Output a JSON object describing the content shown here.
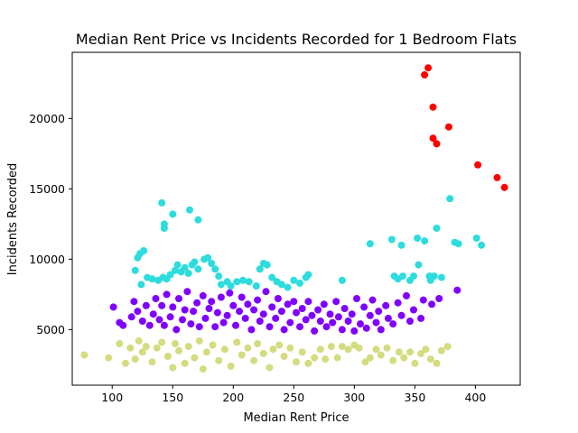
{
  "chart_data": {
    "type": "scatter",
    "title": "Median Rent Price vs Incidents Recorded for 1 Bedroom Flats",
    "xlabel": "Median Rent Price",
    "ylabel": "Incidents Recorded",
    "xlim": [
      67,
      437
    ],
    "ylim": [
      1050,
      24700
    ],
    "xticks": [
      100,
      150,
      200,
      250,
      300,
      350,
      400
    ],
    "yticks": [
      5000,
      10000,
      15000,
      20000
    ],
    "grid": false,
    "legend": "none",
    "series": [
      {
        "color": "#ff0000",
        "points": [
          [
            358,
            23100
          ],
          [
            361,
            23600
          ],
          [
            365,
            20800
          ],
          [
            365,
            18600
          ],
          [
            368,
            18200
          ],
          [
            378,
            19400
          ],
          [
            402,
            16700
          ],
          [
            418,
            15800
          ],
          [
            424,
            15100
          ]
        ]
      },
      {
        "color": "#2ddcdc",
        "points": [
          [
            141,
            14000
          ],
          [
            143,
            12200
          ],
          [
            143,
            12500
          ],
          [
            150,
            13200
          ],
          [
            164,
            13500
          ],
          [
            171,
            12800
          ],
          [
            119,
            9200
          ],
          [
            121,
            10100
          ],
          [
            123,
            10400
          ],
          [
            126,
            10600
          ],
          [
            124,
            8200
          ],
          [
            129,
            8700
          ],
          [
            133,
            8600
          ],
          [
            138,
            8500
          ],
          [
            142,
            8700
          ],
          [
            145,
            8600
          ],
          [
            148,
            8900
          ],
          [
            152,
            9200
          ],
          [
            154,
            9600
          ],
          [
            157,
            9100
          ],
          [
            160,
            9400
          ],
          [
            163,
            9000
          ],
          [
            166,
            9600
          ],
          [
            168,
            9800
          ],
          [
            171,
            9300
          ],
          [
            176,
            10000
          ],
          [
            179,
            10100
          ],
          [
            182,
            9700
          ],
          [
            185,
            9300
          ],
          [
            188,
            8800
          ],
          [
            190,
            8200
          ],
          [
            195,
            8400
          ],
          [
            198,
            8100
          ],
          [
            203,
            8400
          ],
          [
            208,
            8500
          ],
          [
            213,
            8400
          ],
          [
            219,
            8100
          ],
          [
            222,
            9300
          ],
          [
            225,
            9700
          ],
          [
            228,
            9600
          ],
          [
            232,
            8700
          ],
          [
            236,
            8400
          ],
          [
            240,
            8200
          ],
          [
            245,
            8000
          ],
          [
            250,
            8500
          ],
          [
            255,
            8300
          ],
          [
            260,
            8700
          ],
          [
            262,
            8900
          ],
          [
            290,
            8500
          ],
          [
            313,
            11100
          ],
          [
            331,
            11400
          ],
          [
            333,
            8800
          ],
          [
            336,
            8600
          ],
          [
            340,
            8800
          ],
          [
            339,
            11000
          ],
          [
            346,
            8500
          ],
          [
            349,
            8800
          ],
          [
            352,
            11500
          ],
          [
            353,
            9600
          ],
          [
            358,
            11300
          ],
          [
            362,
            8800
          ],
          [
            363,
            8500
          ],
          [
            366,
            8800
          ],
          [
            368,
            12200
          ],
          [
            372,
            8700
          ],
          [
            379,
            14300
          ],
          [
            383,
            11200
          ],
          [
            386,
            11100
          ],
          [
            401,
            11500
          ],
          [
            405,
            11000
          ]
        ]
      },
      {
        "color": "#8000ff",
        "points": [
          [
            101,
            6600
          ],
          [
            106,
            5500
          ],
          [
            109,
            5300
          ],
          [
            116,
            5900
          ],
          [
            118,
            7000
          ],
          [
            121,
            6300
          ],
          [
            125,
            5600
          ],
          [
            128,
            6700
          ],
          [
            131,
            5300
          ],
          [
            134,
            6100
          ],
          [
            136,
            7200
          ],
          [
            139,
            5700
          ],
          [
            141,
            6700
          ],
          [
            143,
            5300
          ],
          [
            145,
            7500
          ],
          [
            148,
            5900
          ],
          [
            150,
            6600
          ],
          [
            153,
            5000
          ],
          [
            155,
            7200
          ],
          [
            158,
            5700
          ],
          [
            160,
            6400
          ],
          [
            162,
            7700
          ],
          [
            165,
            5400
          ],
          [
            167,
            6300
          ],
          [
            170,
            6900
          ],
          [
            172,
            5200
          ],
          [
            175,
            7400
          ],
          [
            177,
            5800
          ],
          [
            180,
            6500
          ],
          [
            182,
            7000
          ],
          [
            185,
            5200
          ],
          [
            187,
            6200
          ],
          [
            190,
            7300
          ],
          [
            192,
            5500
          ],
          [
            195,
            6000
          ],
          [
            197,
            7600
          ],
          [
            200,
            6700
          ],
          [
            202,
            5300
          ],
          [
            205,
            6300
          ],
          [
            207,
            7300
          ],
          [
            210,
            5800
          ],
          [
            212,
            6800
          ],
          [
            215,
            5000
          ],
          [
            217,
            6400
          ],
          [
            220,
            7100
          ],
          [
            222,
            5600
          ],
          [
            225,
            6100
          ],
          [
            227,
            7700
          ],
          [
            230,
            5200
          ],
          [
            232,
            6600
          ],
          [
            235,
            5800
          ],
          [
            237,
            7200
          ],
          [
            240,
            6300
          ],
          [
            242,
            5000
          ],
          [
            245,
            6800
          ],
          [
            247,
            5500
          ],
          [
            250,
            7000
          ],
          [
            252,
            6200
          ],
          [
            255,
            5200
          ],
          [
            257,
            6500
          ],
          [
            260,
            5700
          ],
          [
            262,
            7000
          ],
          [
            265,
            6000
          ],
          [
            267,
            4900
          ],
          [
            270,
            6400
          ],
          [
            272,
            5600
          ],
          [
            275,
            6800
          ],
          [
            277,
            5200
          ],
          [
            280,
            6100
          ],
          [
            282,
            5500
          ],
          [
            285,
            7000
          ],
          [
            287,
            5900
          ],
          [
            290,
            5000
          ],
          [
            292,
            6500
          ],
          [
            295,
            5600
          ],
          [
            298,
            6100
          ],
          [
            300,
            4900
          ],
          [
            302,
            7200
          ],
          [
            305,
            5400
          ],
          [
            308,
            6600
          ],
          [
            310,
            5100
          ],
          [
            313,
            6000
          ],
          [
            315,
            7100
          ],
          [
            318,
            5500
          ],
          [
            320,
            6300
          ],
          [
            322,
            5000
          ],
          [
            326,
            6700
          ],
          [
            328,
            5800
          ],
          [
            332,
            5400
          ],
          [
            336,
            6900
          ],
          [
            339,
            6000
          ],
          [
            343,
            7400
          ],
          [
            346,
            5600
          ],
          [
            349,
            6400
          ],
          [
            355,
            5800
          ],
          [
            357,
            7100
          ],
          [
            364,
            6800
          ],
          [
            370,
            7200
          ],
          [
            385,
            7800
          ]
        ]
      },
      {
        "color": "#d4dc7f",
        "points": [
          [
            77,
            3200
          ],
          [
            97,
            3000
          ],
          [
            106,
            4000
          ],
          [
            111,
            2600
          ],
          [
            115,
            3700
          ],
          [
            119,
            2900
          ],
          [
            122,
            4200
          ],
          [
            125,
            3400
          ],
          [
            128,
            3800
          ],
          [
            133,
            2700
          ],
          [
            137,
            3700
          ],
          [
            141,
            4100
          ],
          [
            146,
            3100
          ],
          [
            150,
            2300
          ],
          [
            152,
            4000
          ],
          [
            155,
            3500
          ],
          [
            160,
            2600
          ],
          [
            163,
            3800
          ],
          [
            168,
            3000
          ],
          [
            172,
            4200
          ],
          [
            175,
            2200
          ],
          [
            178,
            3400
          ],
          [
            183,
            3900
          ],
          [
            188,
            2800
          ],
          [
            193,
            3600
          ],
          [
            198,
            2400
          ],
          [
            203,
            4100
          ],
          [
            207,
            3200
          ],
          [
            212,
            3700
          ],
          [
            217,
            2800
          ],
          [
            220,
            4000
          ],
          [
            225,
            3300
          ],
          [
            230,
            2300
          ],
          [
            233,
            3600
          ],
          [
            238,
            3900
          ],
          [
            242,
            3100
          ],
          [
            247,
            3700
          ],
          [
            252,
            2700
          ],
          [
            257,
            3400
          ],
          [
            262,
            2600
          ],
          [
            267,
            3000
          ],
          [
            272,
            3600
          ],
          [
            276,
            2900
          ],
          [
            281,
            3800
          ],
          [
            286,
            3000
          ],
          [
            290,
            3800
          ],
          [
            295,
            3600
          ],
          [
            300,
            3900
          ],
          [
            304,
            3700
          ],
          [
            309,
            2700
          ],
          [
            313,
            3000
          ],
          [
            318,
            3600
          ],
          [
            322,
            3200
          ],
          [
            327,
            3700
          ],
          [
            332,
            2800
          ],
          [
            337,
            3400
          ],
          [
            341,
            3000
          ],
          [
            346,
            3400
          ],
          [
            350,
            2600
          ],
          [
            355,
            3300
          ],
          [
            359,
            3600
          ],
          [
            363,
            2900
          ],
          [
            368,
            2600
          ],
          [
            372,
            3500
          ],
          [
            377,
            3800
          ]
        ]
      }
    ]
  }
}
